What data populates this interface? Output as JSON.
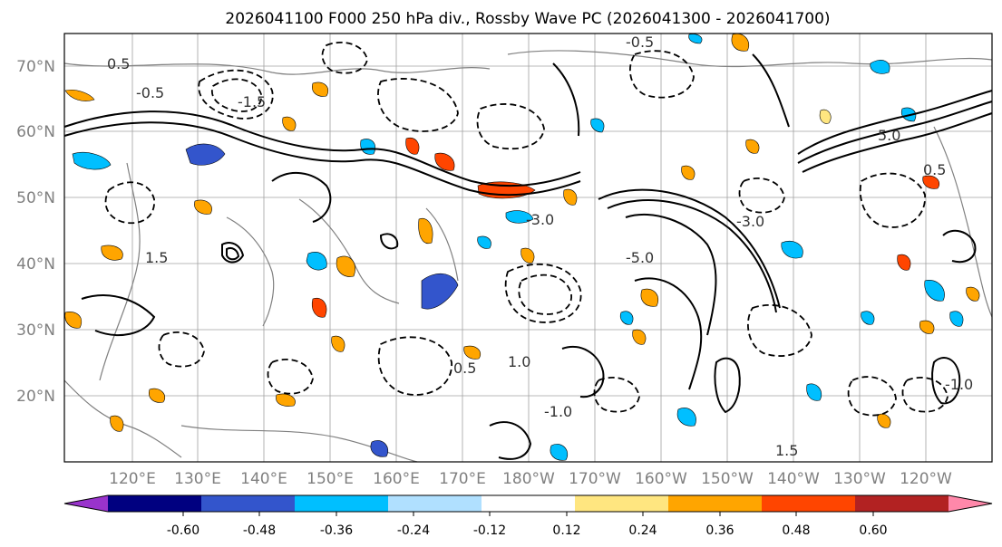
{
  "title": "2026041100 F000 250 hPa div., Rossby Wave PC (2026041300 - 2026041700)",
  "map": {
    "lat_labels": [
      "70°N",
      "60°N",
      "50°N",
      "40°N",
      "30°N",
      "20°N"
    ],
    "lon_labels": [
      "120°E",
      "130°E",
      "140°E",
      "150°E",
      "160°E",
      "170°E",
      "180°W",
      "170°W",
      "160°W",
      "150°W",
      "140°W",
      "130°W",
      "120°W"
    ],
    "contour_labels": [
      "0.5",
      "-0.5",
      "-1.5",
      "-1.0",
      "-5.0",
      "-3.0",
      "5.0",
      "1.0",
      "1.5",
      "-3.0",
      "-0.5",
      "0.5",
      "1.5",
      "0.5",
      "-1.0"
    ],
    "contour_color": "#000000",
    "graticule_color": "#a0a0a0",
    "coastline_color": "#808080"
  },
  "colorbar": {
    "tick_labels": [
      "-0.60",
      "-0.48",
      "-0.36",
      "-0.24",
      "-0.12",
      "0.12",
      "0.24",
      "0.36",
      "0.48",
      "0.60"
    ],
    "colors": [
      "#9933cc",
      "#000080",
      "#3355cc",
      "#00bfff",
      "#b0e0ff",
      "#ffffff",
      "#ffe680",
      "#ffa500",
      "#ff4500",
      "#b22222",
      "#ff88aa"
    ]
  }
}
